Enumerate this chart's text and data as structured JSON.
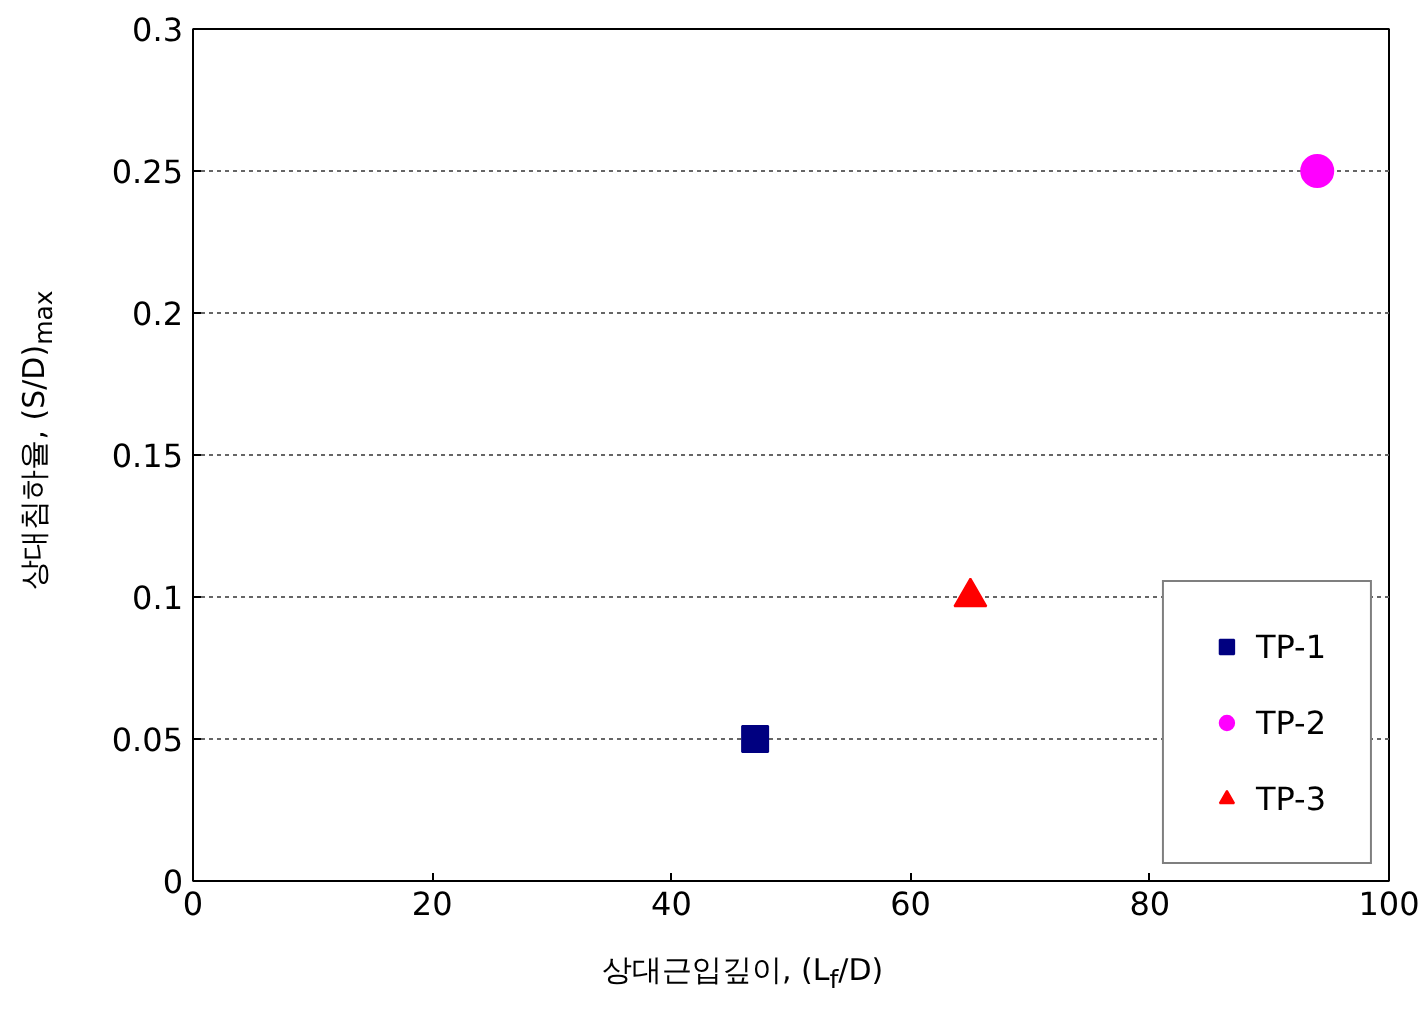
{
  "chart_data": {
    "type": "scatter",
    "xlabel": "상대근입깊이, (L$_{f}$/D)",
    "ylabel": "상대침하율, (S/D)$_{max}$",
    "xlim": [
      0,
      100
    ],
    "xticks": [
      0,
      20,
      40,
      60,
      80,
      100
    ],
    "ylim": [
      0,
      0.3
    ],
    "yticks": [
      0,
      0.05,
      0.1,
      0.15,
      0.2,
      0.25,
      0.3
    ],
    "grid": "y",
    "legend": "bottom right",
    "series": [
      {
        "name": "TP-1",
        "color": "#000080",
        "marker": "square",
        "x": [
          47
        ],
        "values": [
          0.05
        ]
      },
      {
        "name": "TP-2",
        "color": "#ff00ff",
        "marker": "circle",
        "x": [
          94
        ],
        "values": [
          0.25
        ]
      },
      {
        "name": "TP-3",
        "color": "#ff0000",
        "marker": "triangle",
        "x": [
          65
        ],
        "values": [
          0.1
        ]
      }
    ]
  }
}
